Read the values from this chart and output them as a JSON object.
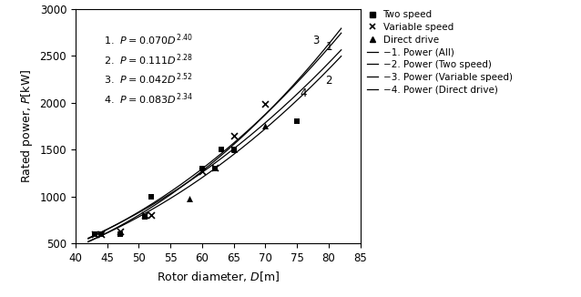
{
  "title": "",
  "xlabel": "Rotor diameter, $D$[m]",
  "ylabel": "Rated power, $P$[kW]",
  "xlim": [
    40,
    85
  ],
  "ylim": [
    500,
    3000
  ],
  "xticks": [
    40,
    45,
    50,
    55,
    60,
    65,
    70,
    75,
    80,
    85
  ],
  "yticks": [
    500,
    1000,
    1500,
    2000,
    2500,
    3000
  ],
  "two_speed_D": [
    43,
    44,
    47,
    51,
    52,
    60,
    62,
    63,
    65,
    75
  ],
  "two_speed_P": [
    600,
    600,
    600,
    780,
    1000,
    1300,
    1300,
    1500,
    1500,
    1800
  ],
  "variable_speed_D": [
    43,
    44,
    47,
    51,
    52,
    60,
    62,
    65,
    70
  ],
  "variable_speed_P": [
    600,
    600,
    630,
    800,
    800,
    1270,
    1310,
    1650,
    1990
  ],
  "direct_drive_D": [
    58,
    65,
    70
  ],
  "direct_drive_P": [
    980,
    1500,
    1760
  ],
  "curve_D_range": [
    42,
    82
  ],
  "curve1_coeff": 0.07,
  "curve1_exp": 2.4,
  "curve2_coeff": 0.111,
  "curve2_exp": 2.28,
  "curve3_coeff": 0.042,
  "curve3_exp": 2.52,
  "curve4_coeff": 0.083,
  "curve4_exp": 2.34,
  "curve_color": "#000000",
  "marker_color": "#000000",
  "annotation_eq1": "1.  $P = 0.070D^{2.40}$",
  "annotation_eq2": "2.  $P = 0.111D^{2.28}$",
  "annotation_eq3": "3.  $P = 0.042D^{2.52}$",
  "annotation_eq4": "4.  $P = 0.083D^{2.34}$",
  "legend_two_speed": "Two speed",
  "legend_variable_speed": "Variable speed",
  "legend_direct_drive": "Direct drive",
  "legend_curve1": "−1. Power (All)",
  "legend_curve2": "−2. Power (Two speed)",
  "legend_curve3": "−3. Power (Variable speed)",
  "legend_curve4": "−4. Power (Direct drive)",
  "figsize": [
    6.38,
    3.26
  ],
  "dpi": 100
}
